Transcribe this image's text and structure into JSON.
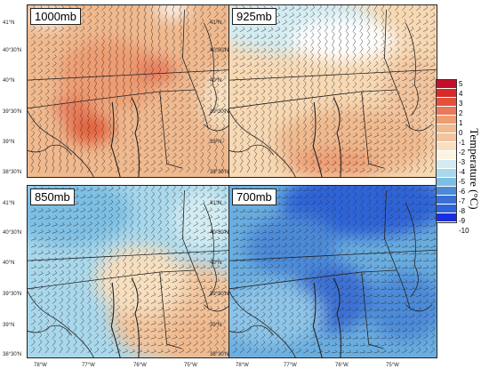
{
  "panels": [
    {
      "label": "1000mb",
      "base": "#f0b98e",
      "blobs": [
        {
          "c": "#ee9c72",
          "ox": 0.4,
          "oy": 0.4,
          "rx": 0.25,
          "ry": 0.2
        },
        {
          "c": "#e3623c",
          "ox": 0.3,
          "oy": 0.72,
          "rx": 0.11,
          "ry": 0.09
        },
        {
          "c": "#e8795a",
          "ox": 0.62,
          "oy": 0.38,
          "rx": 0.1,
          "ry": 0.07
        },
        {
          "c": "#e8795a",
          "ox": 0.22,
          "oy": 0.6,
          "rx": 0.09,
          "ry": 0.07
        },
        {
          "c": "#ffffff",
          "ox": 0.1,
          "oy": 0.07,
          "rx": 0.09,
          "ry": 0.05
        },
        {
          "c": "#ffffff",
          "ox": 0.7,
          "oy": 0.02,
          "rx": 0.08,
          "ry": 0.05
        },
        {
          "c": "#f7dfbf",
          "ox": 0.95,
          "oy": 0.55,
          "rx": 0.12,
          "ry": 0.18
        }
      ]
    },
    {
      "label": "925mb",
      "base": "#f7d9b4",
      "blobs": [
        {
          "c": "#d3ecf2",
          "ox": 0.3,
          "oy": 0.1,
          "rx": 0.4,
          "ry": 0.18
        },
        {
          "c": "#ffffff",
          "ox": 0.55,
          "oy": 0.2,
          "rx": 0.25,
          "ry": 0.12
        },
        {
          "c": "#f0b98e",
          "ox": 0.6,
          "oy": 0.8,
          "rx": 0.38,
          "ry": 0.2
        },
        {
          "c": "#ee9c72",
          "ox": 0.5,
          "oy": 0.92,
          "rx": 0.22,
          "ry": 0.08
        },
        {
          "c": "#f2c49d",
          "ox": 0.9,
          "oy": 0.5,
          "rx": 0.15,
          "ry": 0.2
        }
      ]
    },
    {
      "label": "850mb",
      "base": "#a9d8ec",
      "blobs": [
        {
          "c": "#7dbfe4",
          "ox": 0.2,
          "oy": 0.15,
          "rx": 0.3,
          "ry": 0.2
        },
        {
          "c": "#f2c49d",
          "ox": 0.75,
          "oy": 0.75,
          "rx": 0.35,
          "ry": 0.3
        },
        {
          "c": "#f7dfbf",
          "ox": 0.55,
          "oy": 0.55,
          "rx": 0.22,
          "ry": 0.2
        },
        {
          "c": "#f0b98e",
          "ox": 0.85,
          "oy": 0.9,
          "rx": 0.2,
          "ry": 0.15
        },
        {
          "c": "#d3ecf2",
          "ox": 0.85,
          "oy": 0.2,
          "rx": 0.15,
          "ry": 0.18
        }
      ]
    },
    {
      "label": "700mb",
      "base": "#6aaee0",
      "blobs": [
        {
          "c": "#2e64d8",
          "ox": 0.65,
          "oy": 0.1,
          "rx": 0.4,
          "ry": 0.2
        },
        {
          "c": "#3a6fd4",
          "ox": 0.5,
          "oy": 0.65,
          "rx": 0.18,
          "ry": 0.2
        },
        {
          "c": "#8ec5e8",
          "ox": 0.2,
          "oy": 0.75,
          "rx": 0.25,
          "ry": 0.18
        },
        {
          "c": "#4b8ad9",
          "ox": 0.3,
          "oy": 0.35,
          "rx": 0.22,
          "ry": 0.18
        },
        {
          "c": "#4b8ad9",
          "ox": 0.85,
          "oy": 0.7,
          "rx": 0.18,
          "ry": 0.2
        }
      ]
    }
  ],
  "lat_ticks": [
    "41°N",
    "40°30'N",
    "40°N",
    "39°30'N",
    "39°N",
    "38°30'N"
  ],
  "lon_ticks": [
    "78°W",
    "77°W",
    "76°W",
    "75°W"
  ],
  "legend": {
    "title": "Temperature (°C)",
    "items": [
      {
        "label": "5",
        "color": "#c3102a"
      },
      {
        "label": "4",
        "color": "#d92a2a"
      },
      {
        "label": "3",
        "color": "#e3503c"
      },
      {
        "label": "2",
        "color": "#e8795a"
      },
      {
        "label": "1",
        "color": "#ee9c72"
      },
      {
        "label": "0",
        "color": "#f0b98e"
      },
      {
        "label": "-1",
        "color": "#f2c49d"
      },
      {
        "label": "-2",
        "color": "#f7dfbf"
      },
      {
        "label": "-3",
        "color": "#fbf4e0"
      },
      {
        "label": "-4",
        "color": "#d3ecf2"
      },
      {
        "label": "-5",
        "color": "#a9d8ec"
      },
      {
        "label": "-6",
        "color": "#7dbfe4"
      },
      {
        "label": "-7",
        "color": "#4b8ad9"
      },
      {
        "label": "-8",
        "color": "#3a6fd4"
      },
      {
        "label": "-9",
        "color": "#2e64d8"
      },
      {
        "label": "-10",
        "color": "#1a2ee0"
      }
    ]
  }
}
